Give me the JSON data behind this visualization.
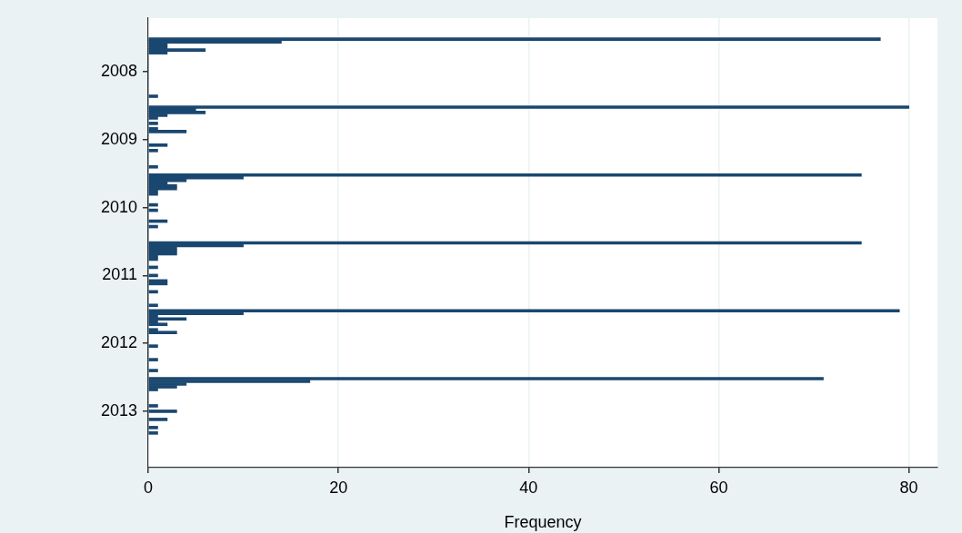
{
  "chart_data": {
    "type": "histogram",
    "orientation": "horizontal",
    "xlabel": "Frequency",
    "color": "#1a476f",
    "bins": [
      2007.5,
      2007.54,
      2007.58,
      2007.62,
      2007.66,
      2007.7,
      2007.74,
      2007.78,
      2007.82,
      2007.86,
      2007.9,
      2007.94,
      2007.98,
      2008.02,
      2008.06,
      2008.1,
      2008.14,
      2008.18,
      2008.22,
      2008.26,
      2008.3,
      2008.34,
      2008.38,
      2008.42,
      2008.46,
      2008.5,
      2008.54,
      2008.58,
      2008.62,
      2008.66,
      2008.7,
      2008.74,
      2008.78,
      2008.82,
      2008.86,
      2008.9,
      2008.94,
      2008.98,
      2009.02,
      2009.06,
      2009.1,
      2009.14,
      2009.18,
      2009.22,
      2009.26,
      2009.3,
      2009.34,
      2009.38,
      2009.42,
      2009.46,
      2009.5,
      2009.54,
      2009.58,
      2009.62,
      2009.66,
      2009.7,
      2009.74,
      2009.78,
      2009.82,
      2009.86,
      2009.9,
      2009.94,
      2009.98,
      2010.02,
      2010.06,
      2010.1,
      2010.14,
      2010.18,
      2010.22,
      2010.26,
      2010.3,
      2010.34,
      2010.38,
      2010.42,
      2010.46,
      2010.5,
      2010.54,
      2010.58,
      2010.62,
      2010.66,
      2010.7,
      2010.74,
      2010.78,
      2010.82,
      2010.86,
      2010.9,
      2010.94,
      2010.98,
      2011.02,
      2011.06,
      2011.1,
      2011.14,
      2011.18,
      2011.22,
      2011.26,
      2011.3,
      2011.34,
      2011.38,
      2011.42,
      2011.46,
      2011.5,
      2011.54,
      2011.58,
      2011.62,
      2011.66,
      2011.7,
      2011.74,
      2011.78,
      2011.82,
      2011.86,
      2011.9,
      2011.94,
      2011.98,
      2012.02,
      2012.06,
      2012.1,
      2012.14,
      2012.18,
      2012.22,
      2012.26,
      2012.3,
      2012.34,
      2012.38,
      2012.42,
      2012.46,
      2012.5,
      2012.54,
      2012.58,
      2012.62,
      2012.66,
      2012.7,
      2012.74,
      2012.78,
      2012.82,
      2012.86,
      2012.9,
      2012.94,
      2012.98,
      2013.02,
      2013.06,
      2013.1,
      2013.14,
      2013.18,
      2013.22,
      2013.26,
      2013.3,
      2013.34
    ],
    "values": [
      77,
      14,
      2,
      2,
      6,
      2,
      0,
      0,
      0,
      0,
      0,
      0,
      0,
      0,
      0,
      0,
      0,
      0,
      0,
      0,
      0,
      1,
      0,
      0,
      0,
      80,
      5,
      6,
      2,
      1,
      0,
      1,
      0,
      1,
      4,
      0,
      0,
      0,
      0,
      2,
      0,
      1,
      0,
      0,
      0,
      0,
      0,
      1,
      0,
      0,
      75,
      10,
      4,
      2,
      3,
      3,
      1,
      1,
      0,
      0,
      0,
      1,
      0,
      1,
      0,
      0,
      0,
      2,
      0,
      1,
      0,
      0,
      0,
      0,
      0,
      75,
      10,
      3,
      3,
      3,
      1,
      1,
      0,
      0,
      1,
      0,
      0,
      1,
      0,
      2,
      2,
      0,
      0,
      1,
      0,
      0,
      0,
      0,
      1,
      0,
      79,
      10,
      1,
      4,
      1,
      2,
      0,
      1,
      3,
      0,
      0,
      0,
      0,
      1,
      0,
      0,
      0,
      0,
      1,
      0,
      0,
      0,
      1,
      0,
      0,
      71,
      17,
      4,
      3,
      1,
      0,
      0,
      0,
      0,
      0,
      1,
      0,
      3,
      0,
      0,
      2,
      0,
      0,
      1,
      0,
      1
    ],
    "xlim": [
      0,
      83
    ],
    "xticks": [
      0,
      20,
      40,
      60,
      80
    ],
    "ylim": [
      2013.83,
      2007.21
    ],
    "yticks": [
      2008,
      2009,
      2010,
      2011,
      2012,
      2013
    ],
    "grid": "x"
  }
}
